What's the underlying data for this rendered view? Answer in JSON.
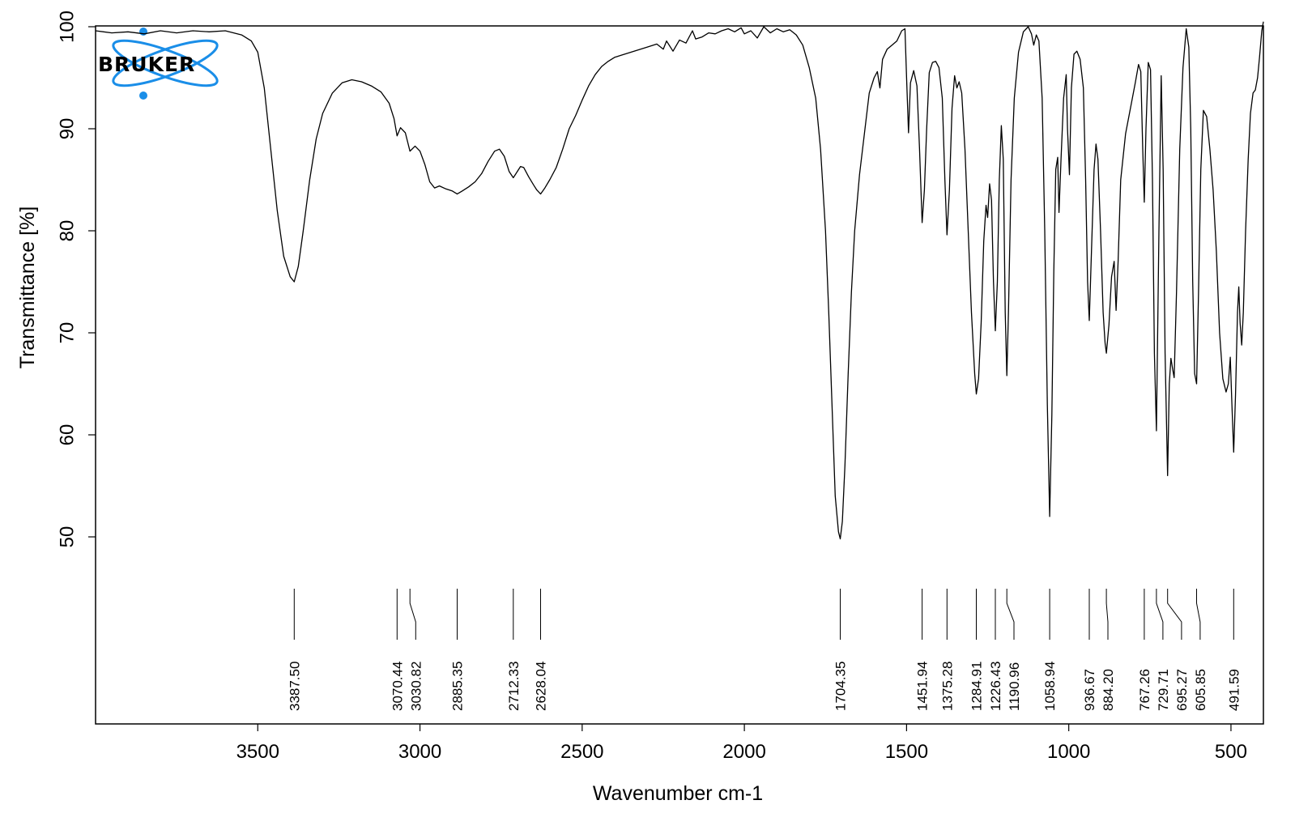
{
  "chart_data": {
    "type": "line",
    "logo_text": "BRUKER",
    "xlabel": "Wavenumber cm-1",
    "ylabel": "Transmittance [%]",
    "xlim": [
      4000,
      400
    ],
    "ylim": [
      42,
      100
    ],
    "x_ticks": [
      3500,
      3000,
      2500,
      2000,
      1500,
      1000,
      500
    ],
    "y_ticks": [
      50,
      60,
      70,
      80,
      90,
      100
    ],
    "grid": false,
    "line_color": "#000000",
    "logo_color": "#1a8ee8",
    "spectrum": [
      [
        4000,
        99.6
      ],
      [
        3950,
        99.4
      ],
      [
        3900,
        99.5
      ],
      [
        3850,
        99.3
      ],
      [
        3800,
        99.6
      ],
      [
        3750,
        99.4
      ],
      [
        3700,
        99.6
      ],
      [
        3650,
        99.5
      ],
      [
        3600,
        99.6
      ],
      [
        3550,
        99.2
      ],
      [
        3520,
        98.6
      ],
      [
        3500,
        97.5
      ],
      [
        3480,
        94
      ],
      [
        3460,
        88
      ],
      [
        3440,
        82
      ],
      [
        3420,
        77.5
      ],
      [
        3400,
        75.5
      ],
      [
        3387.5,
        75
      ],
      [
        3375,
        76.5
      ],
      [
        3360,
        80
      ],
      [
        3340,
        85
      ],
      [
        3320,
        89
      ],
      [
        3300,
        91.5
      ],
      [
        3270,
        93.5
      ],
      [
        3240,
        94.5
      ],
      [
        3210,
        94.8
      ],
      [
        3180,
        94.6
      ],
      [
        3150,
        94.2
      ],
      [
        3120,
        93.6
      ],
      [
        3095,
        92.5
      ],
      [
        3080,
        91
      ],
      [
        3070.44,
        89.3
      ],
      [
        3060,
        90.1
      ],
      [
        3045,
        89.6
      ],
      [
        3030.82,
        87.8
      ],
      [
        3015,
        88.3
      ],
      [
        3000,
        87.8
      ],
      [
        2985,
        86.5
      ],
      [
        2970,
        84.8
      ],
      [
        2955,
        84.2
      ],
      [
        2940,
        84.4
      ],
      [
        2920,
        84.1
      ],
      [
        2900,
        83.9
      ],
      [
        2885.35,
        83.6
      ],
      [
        2870,
        83.9
      ],
      [
        2850,
        84.3
      ],
      [
        2830,
        84.8
      ],
      [
        2810,
        85.6
      ],
      [
        2790,
        86.8
      ],
      [
        2770,
        87.8
      ],
      [
        2755,
        88
      ],
      [
        2740,
        87.3
      ],
      [
        2725,
        85.8
      ],
      [
        2712.33,
        85.2
      ],
      [
        2700,
        85.8
      ],
      [
        2690,
        86.3
      ],
      [
        2680,
        86.2
      ],
      [
        2665,
        85.3
      ],
      [
        2650,
        84.5
      ],
      [
        2640,
        84
      ],
      [
        2628.04,
        83.6
      ],
      [
        2615,
        84.2
      ],
      [
        2600,
        85
      ],
      [
        2580,
        86.2
      ],
      [
        2560,
        88
      ],
      [
        2540,
        90
      ],
      [
        2520,
        91.3
      ],
      [
        2500,
        92.8
      ],
      [
        2480,
        94.2
      ],
      [
        2460,
        95.3
      ],
      [
        2440,
        96.1
      ],
      [
        2420,
        96.6
      ],
      [
        2400,
        97
      ],
      [
        2380,
        97.2
      ],
      [
        2350,
        97.5
      ],
      [
        2320,
        97.8
      ],
      [
        2300,
        98
      ],
      [
        2270,
        98.3
      ],
      [
        2250,
        97.8
      ],
      [
        2240,
        98.6
      ],
      [
        2220,
        97.6
      ],
      [
        2200,
        98.7
      ],
      [
        2180,
        98.4
      ],
      [
        2160,
        99.6
      ],
      [
        2150,
        98.8
      ],
      [
        2130,
        99
      ],
      [
        2110,
        99.4
      ],
      [
        2090,
        99.3
      ],
      [
        2070,
        99.6
      ],
      [
        2050,
        99.8
      ],
      [
        2030,
        99.5
      ],
      [
        2010,
        99.9
      ],
      [
        2000,
        99.3
      ],
      [
        1980,
        99.6
      ],
      [
        1960,
        98.9
      ],
      [
        1940,
        100
      ],
      [
        1920,
        99.4
      ],
      [
        1900,
        99.8
      ],
      [
        1880,
        99.5
      ],
      [
        1860,
        99.7
      ],
      [
        1840,
        99.2
      ],
      [
        1820,
        98.2
      ],
      [
        1800,
        96
      ],
      [
        1780,
        93
      ],
      [
        1765,
        88
      ],
      [
        1750,
        80
      ],
      [
        1740,
        72
      ],
      [
        1730,
        63
      ],
      [
        1720,
        54
      ],
      [
        1710,
        50.5
      ],
      [
        1704.35,
        49.8
      ],
      [
        1698,
        51.5
      ],
      [
        1690,
        57
      ],
      [
        1680,
        66
      ],
      [
        1670,
        74
      ],
      [
        1660,
        80
      ],
      [
        1645,
        85.5
      ],
      [
        1630,
        89.5
      ],
      [
        1615,
        93.5
      ],
      [
        1600,
        95
      ],
      [
        1590,
        95.6
      ],
      [
        1582,
        94
      ],
      [
        1574,
        96.8
      ],
      [
        1560,
        97.8
      ],
      [
        1545,
        98.2
      ],
      [
        1530,
        98.6
      ],
      [
        1515,
        99.6
      ],
      [
        1505,
        99.8
      ],
      [
        1500,
        95
      ],
      [
        1494,
        89.6
      ],
      [
        1488,
        94.5
      ],
      [
        1478,
        95.7
      ],
      [
        1468,
        94.2
      ],
      [
        1460,
        88
      ],
      [
        1451.94,
        80.8
      ],
      [
        1445,
        84
      ],
      [
        1438,
        90
      ],
      [
        1430,
        95.5
      ],
      [
        1420,
        96.5
      ],
      [
        1410,
        96.6
      ],
      [
        1400,
        96
      ],
      [
        1390,
        93
      ],
      [
        1382,
        85
      ],
      [
        1375.28,
        79.6
      ],
      [
        1368,
        84
      ],
      [
        1360,
        92
      ],
      [
        1352,
        95.2
      ],
      [
        1345,
        94
      ],
      [
        1338,
        94.6
      ],
      [
        1330,
        93.5
      ],
      [
        1320,
        88
      ],
      [
        1310,
        80
      ],
      [
        1300,
        72
      ],
      [
        1290,
        66
      ],
      [
        1284.91,
        64
      ],
      [
        1278,
        65.5
      ],
      [
        1270,
        71
      ],
      [
        1262,
        79
      ],
      [
        1255,
        82.5
      ],
      [
        1250,
        81.3
      ],
      [
        1244,
        84.6
      ],
      [
        1238,
        83
      ],
      [
        1232,
        75
      ],
      [
        1226.43,
        70.2
      ],
      [
        1220,
        75
      ],
      [
        1214,
        85
      ],
      [
        1208,
        90.3
      ],
      [
        1202,
        87
      ],
      [
        1196,
        72
      ],
      [
        1190.96,
        65.8
      ],
      [
        1186,
        72
      ],
      [
        1178,
        85
      ],
      [
        1168,
        93
      ],
      [
        1155,
        97.5
      ],
      [
        1140,
        99.5
      ],
      [
        1125,
        100
      ],
      [
        1115,
        99.3
      ],
      [
        1108,
        98.2
      ],
      [
        1100,
        99.2
      ],
      [
        1092,
        98.6
      ],
      [
        1082,
        93
      ],
      [
        1074,
        80
      ],
      [
        1066,
        63
      ],
      [
        1058.94,
        52
      ],
      [
        1052,
        62
      ],
      [
        1046,
        76
      ],
      [
        1040,
        86
      ],
      [
        1034,
        87.2
      ],
      [
        1030,
        81.8
      ],
      [
        1024,
        87
      ],
      [
        1016,
        93
      ],
      [
        1008,
        95.3
      ],
      [
        1004,
        90
      ],
      [
        998,
        85.5
      ],
      [
        992,
        94
      ],
      [
        984,
        97.3
      ],
      [
        975,
        97.6
      ],
      [
        965,
        96.8
      ],
      [
        955,
        94
      ],
      [
        948,
        85
      ],
      [
        942,
        75
      ],
      [
        936.67,
        71.2
      ],
      [
        930,
        78
      ],
      [
        922,
        86
      ],
      [
        916,
        88.5
      ],
      [
        910,
        87
      ],
      [
        902,
        80
      ],
      [
        894,
        72
      ],
      [
        888,
        69
      ],
      [
        884.2,
        68
      ],
      [
        876,
        70.8
      ],
      [
        868,
        75.5
      ],
      [
        860,
        77
      ],
      [
        854,
        72.2
      ],
      [
        848,
        77
      ],
      [
        840,
        85
      ],
      [
        825,
        89.5
      ],
      [
        810,
        92
      ],
      [
        795,
        94.5
      ],
      [
        785,
        96.3
      ],
      [
        778,
        95.6
      ],
      [
        772,
        88
      ],
      [
        767.26,
        82.8
      ],
      [
        762,
        90
      ],
      [
        755,
        96.5
      ],
      [
        748,
        95.8
      ],
      [
        742,
        85
      ],
      [
        736,
        68
      ],
      [
        729.71,
        60.4
      ],
      [
        722,
        80
      ],
      [
        715,
        95.2
      ],
      [
        709,
        86
      ],
      [
        703,
        68
      ],
      [
        695.27,
        56
      ],
      [
        690,
        65
      ],
      [
        685,
        67.5
      ],
      [
        680,
        66.5
      ],
      [
        675,
        65.6
      ],
      [
        668,
        74
      ],
      [
        658,
        88
      ],
      [
        648,
        96
      ],
      [
        638,
        99.8
      ],
      [
        630,
        98
      ],
      [
        624,
        90
      ],
      [
        618,
        75
      ],
      [
        612,
        66
      ],
      [
        605.85,
        65
      ],
      [
        600,
        74
      ],
      [
        593,
        86
      ],
      [
        585,
        91.8
      ],
      [
        575,
        91.2
      ],
      [
        565,
        88
      ],
      [
        555,
        84
      ],
      [
        545,
        78
      ],
      [
        535,
        70
      ],
      [
        525,
        65.5
      ],
      [
        515,
        64.2
      ],
      [
        508,
        65
      ],
      [
        502,
        67.6
      ],
      [
        497,
        63
      ],
      [
        491.59,
        58.3
      ],
      [
        486,
        64
      ],
      [
        480,
        72
      ],
      [
        476,
        74.5
      ],
      [
        472,
        71
      ],
      [
        467,
        68.8
      ],
      [
        462,
        72
      ],
      [
        455,
        80
      ],
      [
        447,
        87
      ],
      [
        440,
        91.5
      ],
      [
        432,
        93.5
      ],
      [
        425,
        93.8
      ],
      [
        418,
        95
      ],
      [
        412,
        97
      ],
      [
        405,
        99.6
      ],
      [
        400,
        100.5
      ]
    ],
    "peaks": [
      {
        "x": 3387.5,
        "label": "3387.50"
      },
      {
        "x": 3070.44,
        "label": "3070.44"
      },
      {
        "x": 3030.82,
        "label": "3030.82"
      },
      {
        "x": 2885.35,
        "label": "2885.35"
      },
      {
        "x": 2712.33,
        "label": "2712.33"
      },
      {
        "x": 2628.04,
        "label": "2628.04"
      },
      {
        "x": 1704.35,
        "label": "1704.35"
      },
      {
        "x": 1451.94,
        "label": "1451.94"
      },
      {
        "x": 1375.28,
        "label": "1375.28"
      },
      {
        "x": 1284.91,
        "label": "1284.91"
      },
      {
        "x": 1226.43,
        "label": "1226.43"
      },
      {
        "x": 1190.96,
        "label": "1190.96"
      },
      {
        "x": 1058.94,
        "label": "1058.94"
      },
      {
        "x": 936.67,
        "label": "936.67"
      },
      {
        "x": 884.2,
        "label": "884.20"
      },
      {
        "x": 767.26,
        "label": "767.26"
      },
      {
        "x": 729.71,
        "label": "729.71"
      },
      {
        "x": 695.27,
        "label": "695.27"
      },
      {
        "x": 605.85,
        "label": "605.85"
      },
      {
        "x": 491.59,
        "label": "491.59"
      }
    ]
  }
}
